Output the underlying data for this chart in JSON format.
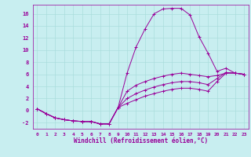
{
  "background_color": "#c8eef0",
  "line_color": "#990099",
  "grid_color": "#aadddd",
  "xlabel": "Windchill (Refroidissement éolien,°C)",
  "xlabel_color": "#990099",
  "tick_color": "#990099",
  "ylim": [
    -3,
    17.5
  ],
  "xlim": [
    -0.5,
    23.5
  ],
  "yticks": [
    -2,
    0,
    2,
    4,
    6,
    8,
    10,
    12,
    14,
    16
  ],
  "xticks": [
    0,
    1,
    2,
    3,
    4,
    5,
    6,
    7,
    8,
    9,
    10,
    11,
    12,
    13,
    14,
    15,
    16,
    17,
    18,
    19,
    20,
    21,
    22,
    23
  ],
  "series": [
    {
      "x": [
        0,
        1,
        2,
        3,
        4,
        5,
        6,
        7,
        8,
        9,
        10,
        11,
        12,
        13,
        14,
        15,
        16,
        17,
        18,
        19,
        20,
        21,
        22,
        23
      ],
      "y": [
        0.3,
        -0.5,
        -1.2,
        -1.5,
        -1.7,
        -1.8,
        -1.8,
        -2.2,
        -2.2,
        0.5,
        6.2,
        10.5,
        13.5,
        16.0,
        16.8,
        16.9,
        16.9,
        15.8,
        12.2,
        9.5,
        6.5,
        7.0,
        6.2,
        6.0
      ]
    },
    {
      "x": [
        0,
        1,
        2,
        3,
        4,
        5,
        6,
        7,
        8,
        9,
        10,
        11,
        12,
        13,
        14,
        15,
        16,
        17,
        18,
        19,
        20,
        21,
        22,
        23
      ],
      "y": [
        0.3,
        -0.5,
        -1.2,
        -1.5,
        -1.7,
        -1.8,
        -1.8,
        -2.2,
        -2.2,
        0.5,
        3.2,
        4.2,
        4.8,
        5.3,
        5.7,
        6.0,
        6.2,
        6.0,
        5.8,
        5.6,
        5.8,
        6.2,
        6.2,
        6.0
      ]
    },
    {
      "x": [
        0,
        1,
        2,
        3,
        4,
        5,
        6,
        7,
        8,
        9,
        10,
        11,
        12,
        13,
        14,
        15,
        16,
        17,
        18,
        19,
        20,
        21,
        22,
        23
      ],
      "y": [
        0.3,
        -0.5,
        -1.2,
        -1.5,
        -1.7,
        -1.8,
        -1.8,
        -2.2,
        -2.2,
        0.5,
        2.0,
        2.8,
        3.4,
        3.9,
        4.3,
        4.6,
        4.8,
        4.8,
        4.6,
        4.3,
        5.3,
        6.3,
        6.2,
        6.0
      ]
    },
    {
      "x": [
        0,
        1,
        2,
        3,
        4,
        5,
        6,
        7,
        8,
        9,
        10,
        11,
        12,
        13,
        14,
        15,
        16,
        17,
        18,
        19,
        20,
        21,
        22,
        23
      ],
      "y": [
        0.3,
        -0.5,
        -1.2,
        -1.5,
        -1.7,
        -1.8,
        -1.8,
        -2.2,
        -2.2,
        0.5,
        1.2,
        1.8,
        2.4,
        2.8,
        3.2,
        3.5,
        3.7,
        3.7,
        3.5,
        3.2,
        4.8,
        6.2,
        6.2,
        6.0
      ]
    }
  ]
}
